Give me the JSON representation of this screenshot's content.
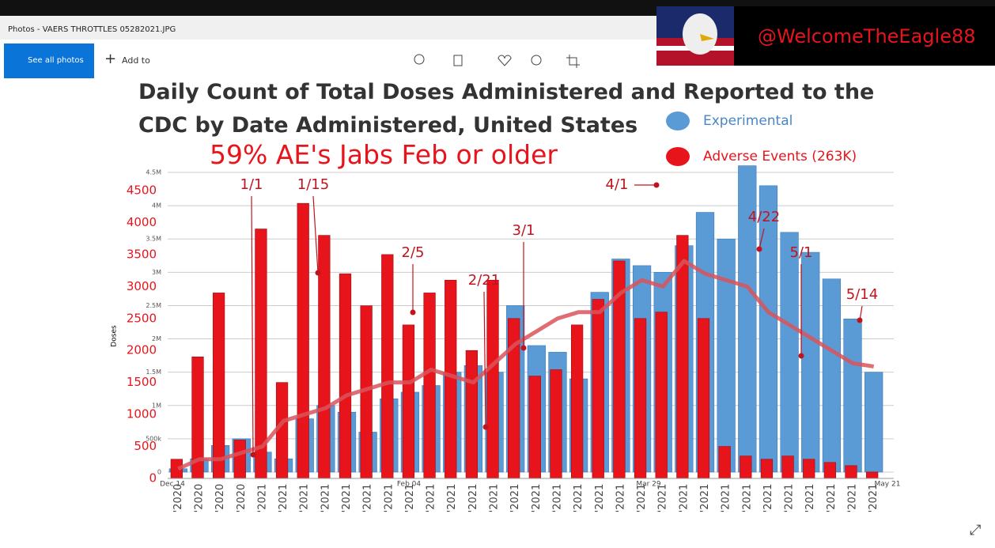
{
  "window": {
    "title": "Photos - VAERS THROTTLES 05282021.JPG",
    "see_all": "See all photos",
    "add_to": "Add to"
  },
  "watermark": "@WelcomeTheEagle88",
  "chart_data": {
    "type": "bar",
    "title": "Daily Count of Total Doses Administered and Reported to the CDC by Date Administered, United States",
    "subtitle": "59% AE's Jabs Feb or older",
    "ylabel": "Doses",
    "date_labels": [
      "Dec 14",
      "Feb 04",
      "Mar 29",
      "May 21"
    ],
    "annotations": [
      "1/1",
      "1/15",
      "2/5",
      "2/21",
      "3/1",
      "4/1",
      "4/22",
      "5/1",
      "5/14"
    ],
    "categories": [
      "'2020",
      "'2020",
      "'2020",
      "'2020",
      "'2021",
      "'2021",
      "'2021",
      "'2021",
      "'2021",
      "'2021",
      "'2021",
      "'2021",
      "'2021",
      "'2021",
      "'2021",
      "'2021",
      "'2021",
      "'2021",
      "'2021",
      "'2021",
      "'2021",
      "'2021",
      "'2021",
      "'2021",
      "'2021",
      "'2021",
      "'2021",
      "'2021",
      "'2021",
      "'2021",
      "'2021",
      "'2021",
      "'2021",
      "'2021"
    ],
    "series": [
      {
        "name": "Experimental",
        "color": "#5b9bd5",
        "axis": "y",
        "values": [
          50000,
          200000,
          400000,
          500000,
          300000,
          200000,
          800000,
          1000000,
          900000,
          600000,
          1100000,
          1200000,
          1300000,
          1500000,
          1600000,
          1500000,
          2500000,
          1900000,
          1800000,
          1400000,
          2700000,
          3200000,
          3100000,
          3000000,
          3400000,
          3900000,
          3500000,
          4600000,
          4300000,
          3600000,
          3300000,
          2900000,
          2300000,
          1500000
        ]
      },
      {
        "name": "Adverse Events (263K)",
        "color": "#e8141c",
        "axis": "y2",
        "values": [
          300,
          1900,
          2900,
          600,
          3900,
          1500,
          4300,
          3800,
          3200,
          2700,
          3500,
          2400,
          2900,
          3100,
          2000,
          3100,
          2500,
          1600,
          1700,
          2400,
          2800,
          3400,
          2500,
          2600,
          3800,
          2500,
          500,
          350,
          300,
          350,
          300,
          250,
          200,
          100
        ]
      },
      {
        "color": "#d9535a",
        "axis": "y2",
        "type": "line",
        "values": [
          150,
          300,
          300,
          400,
          500,
          900,
          1000,
          1100,
          1300,
          1400,
          1500,
          1500,
          1700,
          1600,
          1500,
          1800,
          2100,
          2300,
          2500,
          2600,
          2600,
          2900,
          3100,
          3000,
          3400,
          3200,
          3100,
          3000,
          2600,
          2400,
          2200,
          2000,
          1800,
          1750
        ]
      }
    ],
    "ylim": [
      0,
      4500000
    ],
    "yticks": [
      0,
      {
        "value": 500000,
        "label": "500k"
      },
      {
        "value": 1000000,
        "label": "1M"
      },
      {
        "value": 1500000,
        "label": "1.5M"
      },
      {
        "value": 2000000,
        "label": "2M"
      },
      {
        "value": 2500000,
        "label": "2.5M"
      },
      {
        "value": 3000000,
        "label": "3M"
      },
      {
        "value": 3500000,
        "label": "3.5M"
      },
      {
        "value": 4000000,
        "label": "4M"
      },
      {
        "value": 4500000,
        "label": "4.5M"
      }
    ],
    "y2lim": [
      0,
      4500
    ],
    "y2ticks": [
      0,
      500,
      1000,
      1500,
      2000,
      2500,
      3000,
      3500,
      4000,
      4500
    ],
    "grid": true
  }
}
